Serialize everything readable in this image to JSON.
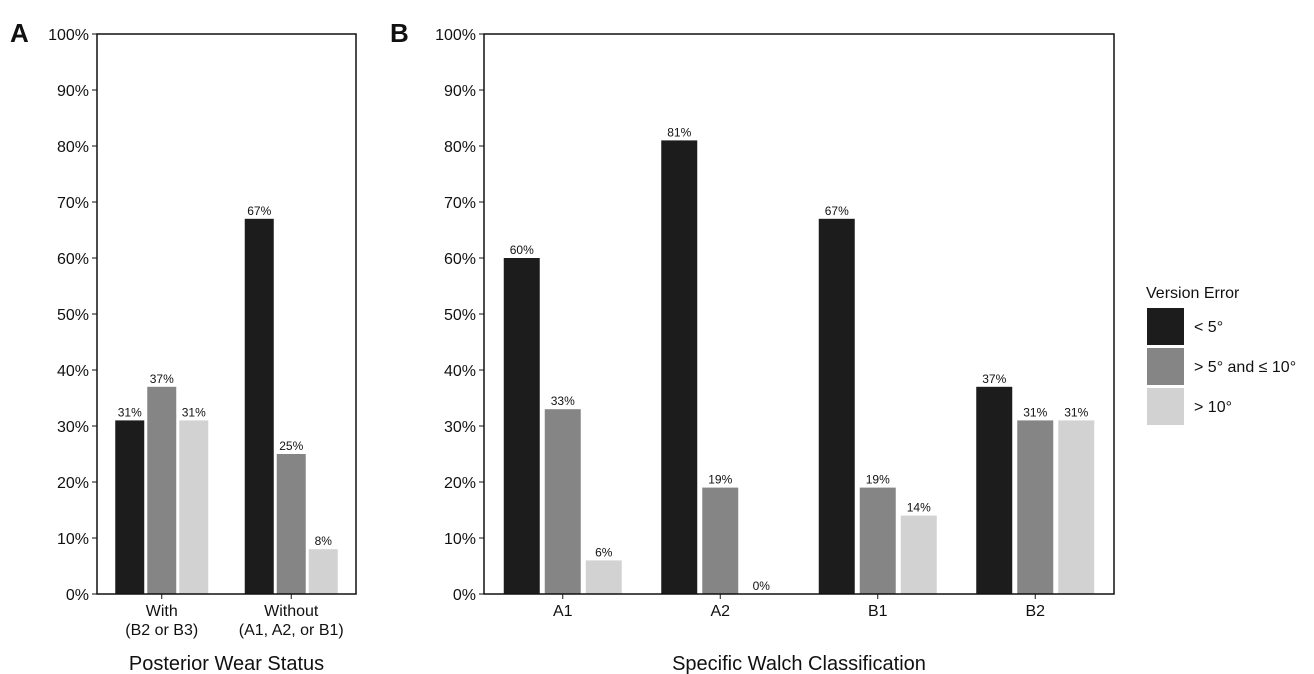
{
  "legend": {
    "title": "Version Error",
    "items": [
      {
        "label": "< 5°",
        "color": "#1c1c1c"
      },
      {
        "label": "> 5° and ≤ 10°",
        "color": "#858585"
      },
      {
        "label": "> 10°",
        "color": "#d2d2d2"
      }
    ]
  },
  "chart_data": [
    {
      "type": "bar",
      "panel": "A",
      "xlabel": "Posterior Wear Status",
      "ylabel": "",
      "ylim": [
        0,
        100
      ],
      "y_ticks": [
        "0%",
        "10%",
        "20%",
        "30%",
        "40%",
        "50%",
        "60%",
        "70%",
        "80%",
        "90%",
        "100%"
      ],
      "categories": [
        {
          "line1": "With",
          "line2": "(B2 or B3)"
        },
        {
          "line1": "Without",
          "line2": "(A1, A2, or B1)"
        }
      ],
      "series": [
        {
          "name": "< 5°",
          "values": [
            31,
            67
          ],
          "labels": [
            "31%",
            "67%"
          ]
        },
        {
          "name": "> 5° and ≤ 10°",
          "values": [
            37,
            25
          ],
          "labels": [
            "37%",
            "25%"
          ]
        },
        {
          "name": "> 10°",
          "values": [
            31,
            8
          ],
          "labels": [
            "31%",
            "8%"
          ]
        }
      ]
    },
    {
      "type": "bar",
      "panel": "B",
      "xlabel": "Specific Walch Classification",
      "ylabel": "",
      "ylim": [
        0,
        100
      ],
      "y_ticks": [
        "0%",
        "10%",
        "20%",
        "30%",
        "40%",
        "50%",
        "60%",
        "70%",
        "80%",
        "90%",
        "100%"
      ],
      "categories": [
        {
          "line1": "A1",
          "line2": ""
        },
        {
          "line1": "A2",
          "line2": ""
        },
        {
          "line1": "B1",
          "line2": ""
        },
        {
          "line1": "B2",
          "line2": ""
        }
      ],
      "series": [
        {
          "name": "< 5°",
          "values": [
            60,
            81,
            67,
            37
          ],
          "labels": [
            "60%",
            "81%",
            "67%",
            "37%"
          ]
        },
        {
          "name": "> 5° and ≤ 10°",
          "values": [
            33,
            19,
            19,
            31
          ],
          "labels": [
            "33%",
            "19%",
            "19%",
            "31%"
          ]
        },
        {
          "name": "> 10°",
          "values": [
            6,
            0,
            14,
            31
          ],
          "labels": [
            "6%",
            "0%",
            "14%",
            "31%"
          ]
        }
      ]
    }
  ]
}
